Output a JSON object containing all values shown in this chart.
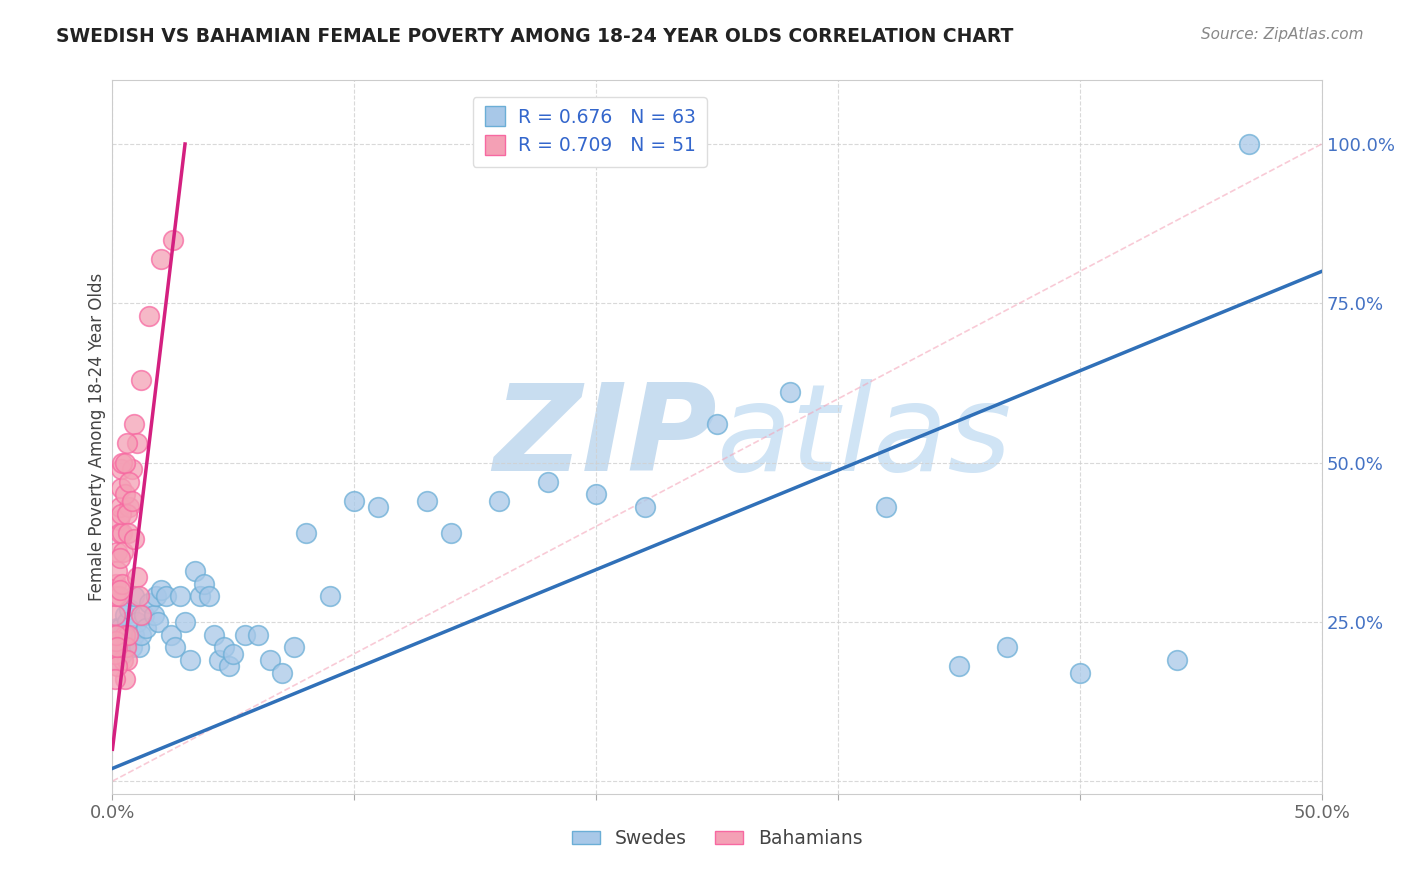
{
  "title": "SWEDISH VS BAHAMIAN FEMALE POVERTY AMONG 18-24 YEAR OLDS CORRELATION CHART",
  "source": "Source: ZipAtlas.com",
  "ylabel": "Female Poverty Among 18-24 Year Olds",
  "xlim": [
    0.0,
    50.0
  ],
  "ylim": [
    -2.0,
    110.0
  ],
  "xtick_positions": [
    0.0,
    10.0,
    20.0,
    30.0,
    40.0,
    50.0
  ],
  "xticklabels": [
    "0.0%",
    "",
    "",
    "",
    "",
    "50.0%"
  ],
  "ytick_positions": [
    0.0,
    25.0,
    50.0,
    75.0,
    100.0
  ],
  "yticklabels": [
    "",
    "25.0%",
    "50.0%",
    "75.0%",
    "100.0%"
  ],
  "blue_R": 0.676,
  "blue_N": 63,
  "pink_R": 0.709,
  "pink_N": 51,
  "blue_color": "#a8c8e8",
  "pink_color": "#f4a0b5",
  "blue_edge_color": "#6baed6",
  "pink_edge_color": "#f768a1",
  "blue_line_color": "#3070b8",
  "pink_line_color": "#d42080",
  "diagonal_color": "#f4a0b5",
  "watermark": "ZIPatlas",
  "watermark_color": "#c8ddf0",
  "blue_points": [
    [
      0.1,
      22
    ],
    [
      0.15,
      21
    ],
    [
      0.2,
      19
    ],
    [
      0.2,
      24
    ],
    [
      0.3,
      24
    ],
    [
      0.4,
      23
    ],
    [
      0.4,
      20
    ],
    [
      0.5,
      26
    ],
    [
      0.5,
      22
    ],
    [
      0.6,
      25
    ],
    [
      0.7,
      27
    ],
    [
      0.7,
      23
    ],
    [
      0.8,
      21
    ],
    [
      0.9,
      29
    ],
    [
      0.9,
      23
    ],
    [
      1.0,
      25
    ],
    [
      1.1,
      21
    ],
    [
      1.2,
      23
    ],
    [
      1.3,
      26
    ],
    [
      1.4,
      24
    ],
    [
      1.5,
      28
    ],
    [
      1.7,
      26
    ],
    [
      1.8,
      29
    ],
    [
      1.9,
      25
    ],
    [
      2.0,
      30
    ],
    [
      2.2,
      29
    ],
    [
      2.4,
      23
    ],
    [
      2.6,
      21
    ],
    [
      2.8,
      29
    ],
    [
      3.0,
      25
    ],
    [
      3.2,
      19
    ],
    [
      3.4,
      33
    ],
    [
      3.6,
      29
    ],
    [
      3.8,
      31
    ],
    [
      4.0,
      29
    ],
    [
      4.2,
      23
    ],
    [
      4.4,
      19
    ],
    [
      4.6,
      21
    ],
    [
      4.8,
      18
    ],
    [
      5.0,
      20
    ],
    [
      5.5,
      23
    ],
    [
      6.0,
      23
    ],
    [
      6.5,
      19
    ],
    [
      7.0,
      17
    ],
    [
      7.5,
      21
    ],
    [
      8.0,
      39
    ],
    [
      9.0,
      29
    ],
    [
      10.0,
      44
    ],
    [
      11.0,
      43
    ],
    [
      13.0,
      44
    ],
    [
      14.0,
      39
    ],
    [
      16.0,
      44
    ],
    [
      18.0,
      47
    ],
    [
      20.0,
      45
    ],
    [
      22.0,
      43
    ],
    [
      25.0,
      56
    ],
    [
      28.0,
      61
    ],
    [
      32.0,
      43
    ],
    [
      35.0,
      18
    ],
    [
      37.0,
      21
    ],
    [
      40.0,
      17
    ],
    [
      44.0,
      19
    ],
    [
      47.0,
      100
    ]
  ],
  "pink_points": [
    [
      0.1,
      23
    ],
    [
      0.1,
      26
    ],
    [
      0.1,
      19
    ],
    [
      0.15,
      31
    ],
    [
      0.15,
      29
    ],
    [
      0.2,
      36
    ],
    [
      0.2,
      33
    ],
    [
      0.25,
      29
    ],
    [
      0.25,
      41
    ],
    [
      0.3,
      43
    ],
    [
      0.3,
      39
    ],
    [
      0.35,
      46
    ],
    [
      0.35,
      49
    ],
    [
      0.4,
      39
    ],
    [
      0.4,
      31
    ],
    [
      0.45,
      36
    ],
    [
      0.45,
      19
    ],
    [
      0.5,
      23
    ],
    [
      0.5,
      16
    ],
    [
      0.55,
      21
    ],
    [
      0.6,
      19
    ],
    [
      0.65,
      23
    ],
    [
      0.7,
      43
    ],
    [
      0.8,
      49
    ],
    [
      0.9,
      56
    ],
    [
      1.0,
      53
    ],
    [
      1.2,
      63
    ],
    [
      1.5,
      73
    ],
    [
      2.0,
      82
    ],
    [
      2.5,
      85
    ],
    [
      0.1,
      20
    ],
    [
      0.15,
      22
    ],
    [
      0.2,
      18
    ],
    [
      0.3,
      35
    ],
    [
      0.3,
      30
    ],
    [
      0.35,
      42
    ],
    [
      0.4,
      50
    ],
    [
      0.5,
      45
    ],
    [
      0.5,
      50
    ],
    [
      0.6,
      53
    ],
    [
      0.6,
      42
    ],
    [
      0.65,
      39
    ],
    [
      0.7,
      47
    ],
    [
      0.8,
      44
    ],
    [
      0.9,
      38
    ],
    [
      1.0,
      32
    ],
    [
      1.1,
      29
    ],
    [
      1.2,
      26
    ],
    [
      0.15,
      23
    ],
    [
      0.2,
      21
    ],
    [
      0.1,
      16
    ]
  ],
  "blue_line": {
    "x0": 0.0,
    "y0": 2.0,
    "x1": 50.0,
    "y1": 80.0
  },
  "pink_line": {
    "x0": 0.0,
    "y0": 5.0,
    "x1": 3.0,
    "y1": 100.0
  },
  "diagonal_line": {
    "x0": 0.0,
    "y0": 0.0,
    "x1": 50.0,
    "y1": 100.0
  }
}
